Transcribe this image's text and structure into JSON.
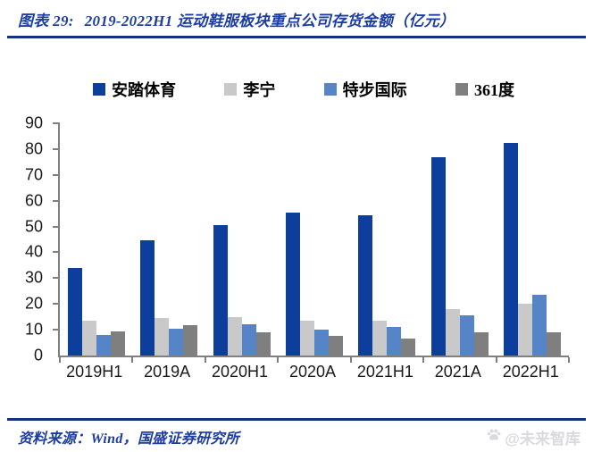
{
  "header": {
    "figure_label": "图表 29:",
    "title": "2019-2022H1 运动鞋服板块重点公司存货金额（亿元）"
  },
  "chart_data": {
    "type": "bar",
    "title": "2019-2022H1 运动鞋服板块重点公司存货金额（亿元）",
    "unit": "亿元",
    "categories": [
      "2019H1",
      "2019A",
      "2020H1",
      "2020A",
      "2021H1",
      "2021A",
      "2022H1"
    ],
    "series": [
      {
        "id": "anta",
        "name": "安踏体育",
        "color": "#0E3E9C",
        "values": [
          34,
          44.5,
          50.5,
          55.5,
          54.5,
          77,
          82.5
        ]
      },
      {
        "id": "lining",
        "name": "李宁",
        "color": "#C9C9C9",
        "values": [
          13.5,
          14.5,
          15,
          13.5,
          13.5,
          18,
          20
        ]
      },
      {
        "id": "xtep",
        "name": "特步国际",
        "color": "#5585C6",
        "values": [
          8,
          10.5,
          12,
          10,
          11,
          15.5,
          23.5
        ]
      },
      {
        "id": "361deg",
        "name": "361度",
        "color": "#7F7F7F",
        "values": [
          9.5,
          11.8,
          9,
          7.5,
          6.5,
          9,
          9
        ]
      }
    ],
    "ylim": [
      0,
      90
    ],
    "ytick_step": 10,
    "grid": false,
    "legend_position": "top"
  },
  "footer": {
    "source": "资料来源：Wind，国盛证券研究所",
    "watermark": "@未来智库",
    "watermark_icon": "paw-icon"
  },
  "colors": {
    "title_text": "#1D3EA0",
    "rule": "#16317E",
    "axis": "#7F7F7F",
    "watermark": "#D9D9DE"
  }
}
